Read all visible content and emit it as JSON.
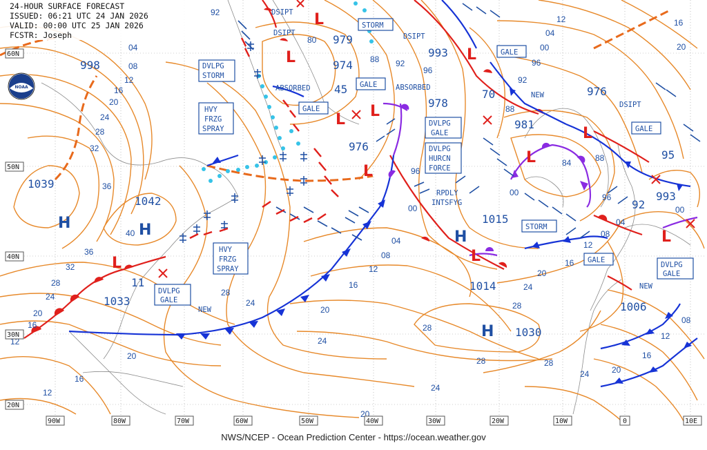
{
  "header": {
    "line1": "24-HOUR SURFACE FORECAST",
    "line2": "ISSUED: 06:21 UTC 24 JAN 2026",
    "line3": "VALID:  00:00 UTC 25 JAN 2026",
    "line4": "FCSTR:  Joseph"
  },
  "footer": "NWS/NCEP - Ocean Prediction Center - https://ocean.weather.gov",
  "logo_text": "NOAA",
  "lat_labels": [
    "60N",
    "50N",
    "40N",
    "30N",
    "20N"
  ],
  "lon_labels": [
    "90W",
    "80W",
    "70W",
    "60W",
    "50W",
    "40W",
    "30W",
    "20W",
    "10W",
    "0",
    "10E"
  ],
  "highs_lows": [
    "H",
    "H",
    "H",
    "H",
    "L",
    "L",
    "L",
    "L",
    "L",
    "L",
    "L",
    "L",
    "L",
    "L",
    "L"
  ],
  "pressure_values": [
    "998",
    "1039",
    "1042",
    "1033",
    "11",
    "979",
    "974",
    "45",
    "978",
    "976",
    "993",
    "70",
    "981",
    "976",
    "95",
    "993",
    "92",
    "1015",
    "1014",
    "1030",
    "1006"
  ],
  "isobar_values": [
    "92",
    "04",
    "08",
    "12",
    "16",
    "20",
    "24",
    "28",
    "32",
    "36",
    "40",
    "36",
    "32",
    "28",
    "24",
    "20",
    "16",
    "12",
    "16",
    "20",
    "24",
    "28",
    "80",
    "88",
    "92",
    "96",
    "88",
    "96",
    "00",
    "04",
    "08",
    "12",
    "16",
    "20",
    "24",
    "28",
    "24",
    "28",
    "20",
    "24",
    "28",
    "12",
    "08",
    "04",
    "00",
    "96",
    "92",
    "84",
    "88",
    "96",
    "00",
    "04",
    "08",
    "12",
    "16",
    "20",
    "24",
    "28",
    "08",
    "12",
    "16",
    "20",
    "16",
    "12",
    "96",
    "00",
    "04",
    "08",
    "12",
    "16",
    "20",
    "00",
    "16",
    "20"
  ],
  "warnings": [
    {
      "lines": [
        "DSIPT"
      ]
    },
    {
      "lines": [
        "DSIPT"
      ]
    },
    {
      "lines": [
        "STORM"
      ]
    },
    {
      "lines": [
        "DSIPT"
      ]
    },
    {
      "lines": [
        "GALE"
      ]
    },
    {
      "lines": [
        "DVLPG",
        "STORM"
      ]
    },
    {
      "lines": [
        "ABSORBED"
      ]
    },
    {
      "lines": [
        "GALE"
      ]
    },
    {
      "lines": [
        "GALE"
      ]
    },
    {
      "lines": [
        "ABSORBED"
      ]
    },
    {
      "lines": [
        "HVY",
        "FRZG",
        "SPRAY"
      ]
    },
    {
      "lines": [
        "DVLPG",
        "GALE"
      ]
    },
    {
      "lines": [
        "DVLPG",
        "HURCN",
        "FORCE"
      ]
    },
    {
      "lines": [
        "RPDLY",
        "INTSFYG"
      ]
    },
    {
      "lines": [
        "NEW"
      ]
    },
    {
      "lines": [
        "DSIPT"
      ]
    },
    {
      "lines": [
        "GALE"
      ]
    },
    {
      "lines": [
        "STORM"
      ]
    },
    {
      "lines": [
        "HVY",
        "FRZG",
        "SPRAY"
      ]
    },
    {
      "lines": [
        "DVLPG",
        "GALE"
      ]
    },
    {
      "lines": [
        "NEW"
      ]
    },
    {
      "lines": [
        "GALE"
      ]
    },
    {
      "lines": [
        "DVLPG",
        "GALE"
      ]
    },
    {
      "lines": [
        "NEW"
      ]
    }
  ]
}
